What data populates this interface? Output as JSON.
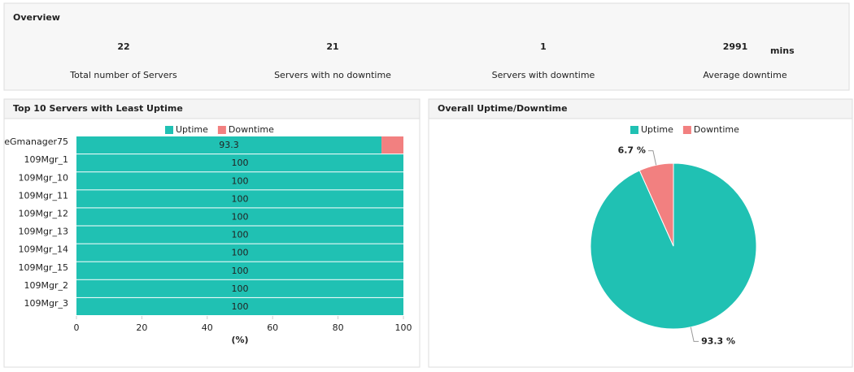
{
  "overview": {
    "title": "Overview",
    "items": [
      {
        "value": "22",
        "label": "Total number of Servers"
      },
      {
        "value": "21",
        "label": "Servers with no downtime"
      },
      {
        "value": "1",
        "label": "Servers with downtime"
      },
      {
        "value": "2991",
        "unit": "mins",
        "label": "Average downtime"
      }
    ]
  },
  "chart_data": [
    {
      "type": "stacked-hbar",
      "title": "Top 10 Servers with Least Uptime",
      "categories": [
        "eGmanager75",
        "109Mgr_1",
        "109Mgr_10",
        "109Mgr_11",
        "109Mgr_12",
        "109Mgr_13",
        "109Mgr_14",
        "109Mgr_15",
        "109Mgr_2",
        "109Mgr_3"
      ],
      "series": [
        {
          "name": "Uptime",
          "color": "#20c1b3",
          "values": [
            93.3,
            100,
            100,
            100,
            100,
            100,
            100,
            100,
            100,
            100
          ]
        },
        {
          "name": "Downtime",
          "color": "#f28080",
          "values": [
            6.7,
            0,
            0,
            0,
            0,
            0,
            0,
            0,
            0,
            0
          ]
        }
      ],
      "xlim": [
        0,
        100
      ],
      "xticks": [
        0,
        20,
        40,
        60,
        80,
        100
      ],
      "xlabel": "(%)"
    },
    {
      "type": "pie",
      "title": "Overall Uptime/Downtime",
      "categories": [
        "Uptime",
        "Downtime"
      ],
      "values": [
        93.3,
        6.7
      ],
      "value_labels": [
        "93.3 %",
        "6.7 %"
      ],
      "colors": [
        "#20c1b3",
        "#f28080"
      ]
    }
  ]
}
